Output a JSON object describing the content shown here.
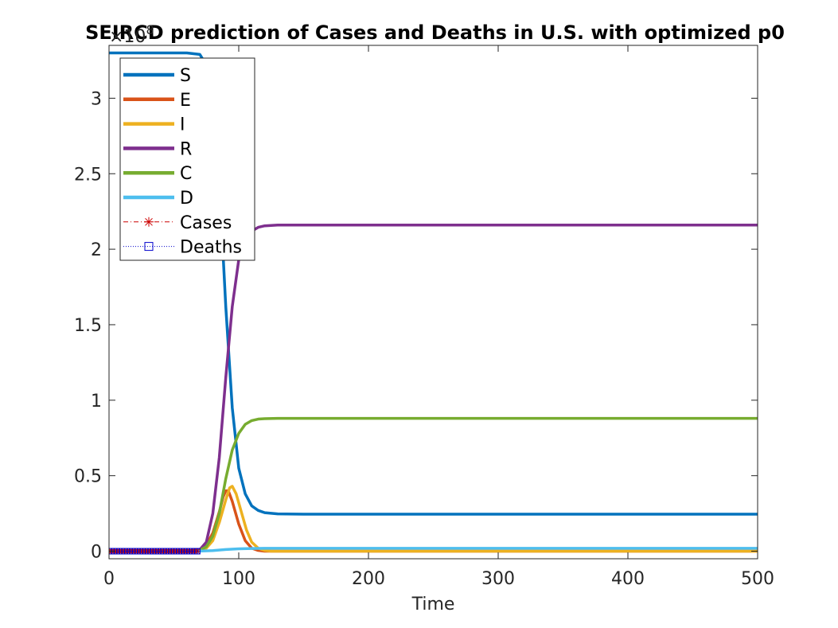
{
  "chart_data": {
    "type": "line",
    "title": "SEIRCD prediction of Cases and Deaths in U.S. with optimized p0",
    "xlabel": "Time",
    "ylabel": "",
    "y_exponent_label": "×10",
    "y_exponent_power": "8",
    "xlim": [
      0,
      500
    ],
    "ylim": [
      -0.05,
      3.35
    ],
    "xticks": [
      0,
      100,
      200,
      300,
      400,
      500
    ],
    "xtick_labels": [
      "0",
      "100",
      "200",
      "300",
      "400",
      "500"
    ],
    "yticks": [
      0,
      0.5,
      1,
      1.5,
      2,
      2.5,
      3
    ],
    "ytick_labels": [
      "0",
      "0.5",
      "1",
      "1.5",
      "2",
      "2.5",
      "3"
    ],
    "grid": false,
    "legend_position": "top-left",
    "series": [
      {
        "name": "S",
        "color": "#0072BD",
        "style": "solid",
        "points": [
          [
            0,
            3.3
          ],
          [
            60,
            3.3
          ],
          [
            70,
            3.29
          ],
          [
            75,
            3.22
          ],
          [
            80,
            2.95
          ],
          [
            85,
            2.45
          ],
          [
            90,
            1.62
          ],
          [
            95,
            0.95
          ],
          [
            100,
            0.55
          ],
          [
            105,
            0.38
          ],
          [
            110,
            0.3
          ],
          [
            115,
            0.27
          ],
          [
            120,
            0.255
          ],
          [
            130,
            0.247
          ],
          [
            150,
            0.245
          ],
          [
            200,
            0.245
          ],
          [
            300,
            0.245
          ],
          [
            400,
            0.245
          ],
          [
            500,
            0.245
          ]
        ]
      },
      {
        "name": "E",
        "color": "#D95319",
        "style": "solid",
        "points": [
          [
            0,
            0
          ],
          [
            60,
            0
          ],
          [
            70,
            0.01
          ],
          [
            75,
            0.04
          ],
          [
            80,
            0.12
          ],
          [
            85,
            0.26
          ],
          [
            88,
            0.36
          ],
          [
            90,
            0.4
          ],
          [
            92,
            0.4
          ],
          [
            95,
            0.33
          ],
          [
            100,
            0.18
          ],
          [
            105,
            0.07
          ],
          [
            110,
            0.02
          ],
          [
            115,
            0.005
          ],
          [
            120,
            0
          ],
          [
            500,
            0
          ]
        ]
      },
      {
        "name": "I",
        "color": "#EDB120",
        "style": "solid",
        "points": [
          [
            0,
            0
          ],
          [
            60,
            0
          ],
          [
            70,
            0.005
          ],
          [
            75,
            0.02
          ],
          [
            80,
            0.07
          ],
          [
            85,
            0.19
          ],
          [
            90,
            0.34
          ],
          [
            93,
            0.42
          ],
          [
            95,
            0.43
          ],
          [
            98,
            0.38
          ],
          [
            102,
            0.26
          ],
          [
            106,
            0.14
          ],
          [
            110,
            0.06
          ],
          [
            115,
            0.02
          ],
          [
            120,
            0.005
          ],
          [
            125,
            0
          ],
          [
            500,
            0
          ]
        ]
      },
      {
        "name": "R",
        "color": "#7E2F8E",
        "style": "solid",
        "points": [
          [
            0,
            0
          ],
          [
            60,
            0
          ],
          [
            70,
            0.01
          ],
          [
            75,
            0.06
          ],
          [
            80,
            0.25
          ],
          [
            85,
            0.62
          ],
          [
            90,
            1.15
          ],
          [
            95,
            1.62
          ],
          [
            100,
            1.93
          ],
          [
            105,
            2.07
          ],
          [
            110,
            2.12
          ],
          [
            115,
            2.145
          ],
          [
            120,
            2.155
          ],
          [
            130,
            2.16
          ],
          [
            200,
            2.16
          ],
          [
            300,
            2.16
          ],
          [
            400,
            2.16
          ],
          [
            500,
            2.16
          ]
        ]
      },
      {
        "name": "C",
        "color": "#77AC30",
        "style": "solid",
        "points": [
          [
            0,
            0
          ],
          [
            60,
            0
          ],
          [
            70,
            0.005
          ],
          [
            75,
            0.03
          ],
          [
            80,
            0.1
          ],
          [
            85,
            0.25
          ],
          [
            90,
            0.48
          ],
          [
            95,
            0.67
          ],
          [
            100,
            0.78
          ],
          [
            105,
            0.84
          ],
          [
            110,
            0.865
          ],
          [
            115,
            0.875
          ],
          [
            120,
            0.878
          ],
          [
            130,
            0.88
          ],
          [
            200,
            0.88
          ],
          [
            300,
            0.88
          ],
          [
            400,
            0.88
          ],
          [
            500,
            0.88
          ]
        ]
      },
      {
        "name": "D",
        "color": "#4DBEEE",
        "style": "solid",
        "points": [
          [
            0,
            0
          ],
          [
            60,
            0
          ],
          [
            70,
            0.001
          ],
          [
            80,
            0.004
          ],
          [
            90,
            0.011
          ],
          [
            100,
            0.016
          ],
          [
            110,
            0.018
          ],
          [
            120,
            0.019
          ],
          [
            200,
            0.019
          ],
          [
            300,
            0.019
          ],
          [
            400,
            0.019
          ],
          [
            500,
            0.019
          ]
        ]
      },
      {
        "name": "Cases",
        "color": "#CC0000",
        "style": "dashdot",
        "marker": "star",
        "points": [
          [
            0,
            0
          ],
          [
            2,
            0
          ],
          [
            4,
            0
          ],
          [
            6,
            0
          ],
          [
            8,
            0
          ],
          [
            10,
            0
          ],
          [
            12,
            0
          ],
          [
            14,
            0
          ],
          [
            16,
            0
          ],
          [
            18,
            0
          ],
          [
            20,
            0
          ],
          [
            22,
            0
          ],
          [
            24,
            0
          ],
          [
            26,
            0
          ],
          [
            28,
            0
          ],
          [
            30,
            0
          ],
          [
            32,
            0
          ],
          [
            34,
            0
          ],
          [
            36,
            0
          ],
          [
            38,
            0
          ],
          [
            40,
            0
          ],
          [
            42,
            0
          ],
          [
            44,
            0
          ],
          [
            46,
            0
          ],
          [
            48,
            0
          ],
          [
            50,
            0
          ],
          [
            52,
            0
          ],
          [
            54,
            0
          ],
          [
            56,
            0
          ],
          [
            58,
            0
          ],
          [
            60,
            0
          ],
          [
            62,
            0
          ],
          [
            64,
            0
          ],
          [
            66,
            0
          ],
          [
            68,
            0
          ]
        ]
      },
      {
        "name": "Deaths",
        "color": "#0000CC",
        "style": "dotted",
        "marker": "square",
        "points": [
          [
            0,
            0
          ],
          [
            2,
            0
          ],
          [
            4,
            0
          ],
          [
            6,
            0
          ],
          [
            8,
            0
          ],
          [
            10,
            0
          ],
          [
            12,
            0
          ],
          [
            14,
            0
          ],
          [
            16,
            0
          ],
          [
            18,
            0
          ],
          [
            20,
            0
          ],
          [
            22,
            0
          ],
          [
            24,
            0
          ],
          [
            26,
            0
          ],
          [
            28,
            0
          ],
          [
            30,
            0
          ],
          [
            32,
            0
          ],
          [
            34,
            0
          ],
          [
            36,
            0
          ],
          [
            38,
            0
          ],
          [
            40,
            0
          ],
          [
            42,
            0
          ],
          [
            44,
            0
          ],
          [
            46,
            0
          ],
          [
            48,
            0
          ],
          [
            50,
            0
          ],
          [
            52,
            0
          ],
          [
            54,
            0
          ],
          [
            56,
            0
          ],
          [
            58,
            0
          ],
          [
            60,
            0
          ],
          [
            62,
            0
          ],
          [
            64,
            0
          ],
          [
            66,
            0
          ],
          [
            68,
            0
          ]
        ]
      }
    ]
  }
}
